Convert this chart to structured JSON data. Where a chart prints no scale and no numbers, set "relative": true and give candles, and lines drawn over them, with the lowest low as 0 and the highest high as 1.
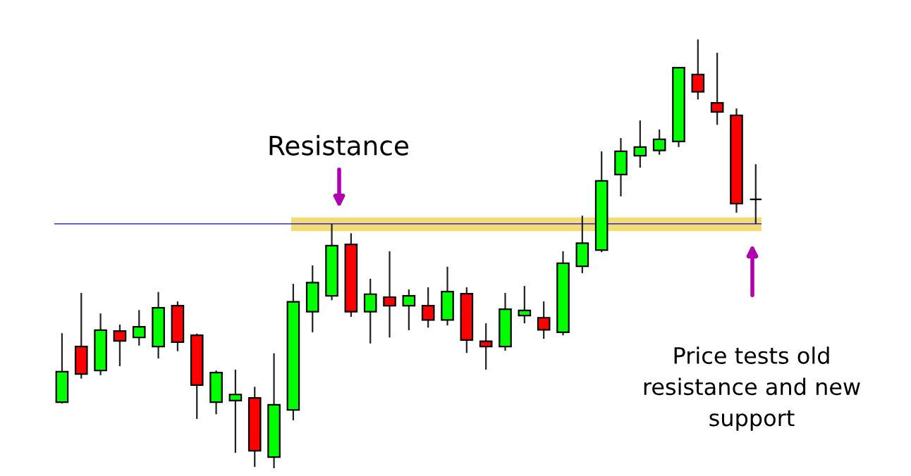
{
  "chart_data": {
    "type": "candlestick",
    "relative": true,
    "annotations": [
      "Resistance",
      "Price tests old resistance and new support"
    ],
    "categories": [
      null,
      null,
      null,
      null,
      null,
      null,
      null,
      null,
      null,
      null,
      null,
      null,
      null,
      null,
      null,
      null,
      null,
      null,
      null,
      null,
      null,
      null,
      null,
      null,
      null,
      null,
      null,
      null,
      null,
      null,
      null,
      null,
      null,
      null,
      null,
      null,
      null
    ],
    "ohlc": [
      [
        0.154,
        0.315,
        0.151,
        0.225
      ],
      [
        0.284,
        0.409,
        0.209,
        0.22
      ],
      [
        0.228,
        0.361,
        0.217,
        0.322
      ],
      [
        0.32,
        0.335,
        0.238,
        0.297
      ],
      [
        0.305,
        0.369,
        0.286,
        0.33
      ],
      [
        0.284,
        0.411,
        0.256,
        0.374
      ],
      [
        0.379,
        0.389,
        0.273,
        0.294
      ],
      [
        0.31,
        0.314,
        0.115,
        0.194
      ],
      [
        0.154,
        0.228,
        0.126,
        0.223
      ],
      [
        0.158,
        0.23,
        0.036,
        0.172
      ],
      [
        0.164,
        0.19,
        0.003,
        0.041
      ],
      [
        0.026,
        0.268,
        0.0,
        0.148
      ],
      [
        0.136,
        0.43,
        0.112,
        0.388
      ],
      [
        0.365,
        0.473,
        0.317,
        0.433
      ],
      [
        0.402,
        0.57,
        0.392,
        0.519
      ],
      [
        0.522,
        0.548,
        0.353,
        0.365
      ],
      [
        0.365,
        0.442,
        0.291,
        0.406
      ],
      [
        0.399,
        0.506,
        0.305,
        0.379
      ],
      [
        0.379,
        0.417,
        0.322,
        0.402
      ],
      [
        0.379,
        0.422,
        0.328,
        0.346
      ],
      [
        0.346,
        0.47,
        0.333,
        0.412
      ],
      [
        0.407,
        0.422,
        0.269,
        0.299
      ],
      [
        0.296,
        0.338,
        0.23,
        0.284
      ],
      [
        0.284,
        0.409,
        0.274,
        0.371
      ],
      [
        0.356,
        0.425,
        0.338,
        0.368
      ],
      [
        0.351,
        0.389,
        0.302,
        0.323
      ],
      [
        0.317,
        0.506,
        0.31,
        0.478
      ],
      [
        0.471,
        0.589,
        0.455,
        0.525
      ],
      [
        0.509,
        0.739,
        0.504,
        0.67
      ],
      [
        0.685,
        0.77,
        0.634,
        0.739
      ],
      [
        0.729,
        0.811,
        0.701,
        0.749
      ],
      [
        0.741,
        0.79,
        0.731,
        0.767
      ],
      [
        0.762,
        0.934,
        0.749,
        0.934
      ],
      [
        0.918,
        1.0,
        0.86,
        0.878
      ],
      [
        0.852,
        0.969,
        0.801,
        0.831
      ],
      [
        0.823,
        0.839,
        0.596,
        0.617
      ],
      [
        0.627,
        0.709,
        0.57,
        0.627
      ]
    ],
    "colors": [
      "#00ff00",
      "#ff0000",
      "#00ff00",
      "#ff0000",
      "#00ff00",
      "#00ff00",
      "#ff0000",
      "#ff0000",
      "#00ff00",
      "#00ff00",
      "#ff0000",
      "#00ff00",
      "#00ff00",
      "#00ff00",
      "#00ff00",
      "#ff0000",
      "#00ff00",
      "#ff0000",
      "#00ff00",
      "#ff0000",
      "#00ff00",
      "#ff0000",
      "#ff0000",
      "#00ff00",
      "#00ff00",
      "#ff0000",
      "#00ff00",
      "#00ff00",
      "#00ff00",
      "#00ff00",
      "#00ff00",
      "#00ff00",
      "#00ff00",
      "#ff0000",
      "#ff0000",
      "#ff0000",
      "#000000"
    ],
    "ref_lines": [
      {
        "axis": "y",
        "value": 0.57,
        "color": "#0000ff"
      }
    ],
    "bands": [
      {
        "axis": "y",
        "from": 0.553,
        "to": 0.585,
        "color": "#f3dc72"
      }
    ],
    "grid": false,
    "legend": false
  }
}
